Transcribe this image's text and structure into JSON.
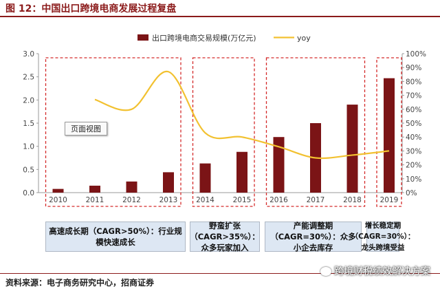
{
  "page_title": "图 12：中国出口跨境电商发展过程复盘",
  "chart_data": {
    "type": "bar+line",
    "categories": [
      "2010",
      "2011",
      "2012",
      "2013",
      "2014",
      "2015",
      "2016",
      "2017",
      "2018",
      "2019"
    ],
    "series": [
      {
        "name": "出口跨境电商交易规模(万亿元)",
        "type": "bar",
        "axis": "left",
        "color": "#7b1416",
        "values": [
          0.08,
          0.15,
          0.24,
          0.44,
          0.63,
          0.88,
          1.2,
          1.5,
          1.9,
          2.47
        ]
      },
      {
        "name": "yoy",
        "type": "line",
        "axis": "right",
        "color": "#f2c130",
        "values": [
          null,
          0.67,
          0.6,
          0.87,
          0.43,
          0.4,
          0.33,
          0.25,
          0.27,
          0.3
        ]
      }
    ],
    "y_left": {
      "ticks": [
        "0.0",
        "0.5",
        "1.0",
        "1.5",
        "2.0",
        "2.5",
        "3.0"
      ],
      "min": 0,
      "max": 3.0
    },
    "y_right": {
      "ticks": [
        "0%",
        "10%",
        "20%",
        "30%",
        "40%",
        "50%",
        "60%",
        "70%",
        "80%",
        "90%",
        "100%"
      ],
      "min": 0,
      "max": 1.0
    },
    "legend_position": "top-right",
    "phase_groups": [
      [
        0,
        3
      ],
      [
        4,
        5
      ],
      [
        6,
        8
      ],
      [
        9,
        9
      ]
    ]
  },
  "phases": [
    "高速成长期（CAGR>50%）：行业规模快速成长",
    "野蛮扩张（CAGR>35%）：众多玩家加入",
    "产能调整期（CAGR=30%）：众多小企去库存",
    "增长稳定期（CAGR=30%）：龙头跨境受益"
  ],
  "popup_label": "页面视图",
  "source": "资料来源：电子商务研究中心，招商证券",
  "watermark": "跨境财税绩效解决方案"
}
